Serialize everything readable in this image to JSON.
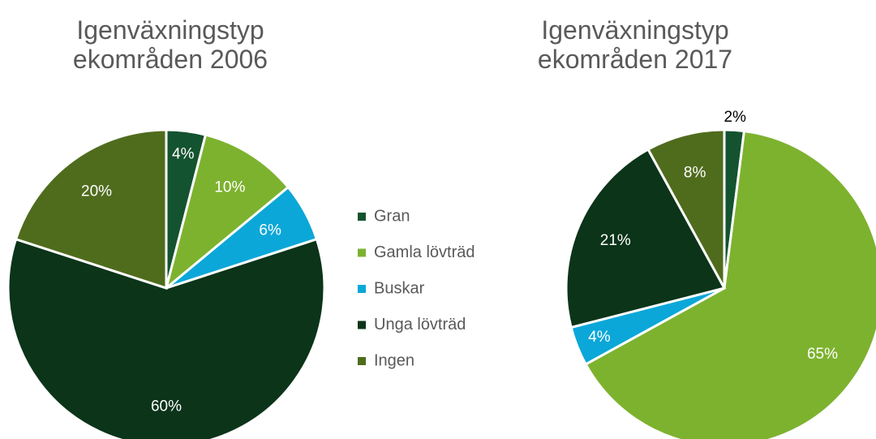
{
  "chart_data": [
    {
      "type": "pie",
      "title": "Igenväxningstyp ekområden 2006",
      "categories": [
        "Gran",
        "Gamla lövträd",
        "Buskar",
        "Unga lövträd",
        "Ingen"
      ],
      "values": [
        4,
        10,
        6,
        60,
        20
      ],
      "value_labels": [
        "4%",
        "10%",
        "6%",
        "60%",
        "20%"
      ],
      "colors": [
        "#14532f",
        "#7db22f",
        "#0ba7d8",
        "#0b3419",
        "#4f6c1d"
      ]
    },
    {
      "type": "pie",
      "title": "Igenväxningstyp ekområden 2017",
      "categories": [
        "Gran",
        "Gamla lövträd",
        "Buskar",
        "Unga lövträd",
        "Ingen"
      ],
      "values": [
        2,
        65,
        4,
        21,
        8
      ],
      "value_labels": [
        "2%",
        "65%",
        "4%",
        "21%",
        "8%"
      ],
      "colors": [
        "#14532f",
        "#7db22f",
        "#0ba7d8",
        "#0b3419",
        "#4f6c1d"
      ],
      "legend": "between"
    }
  ]
}
